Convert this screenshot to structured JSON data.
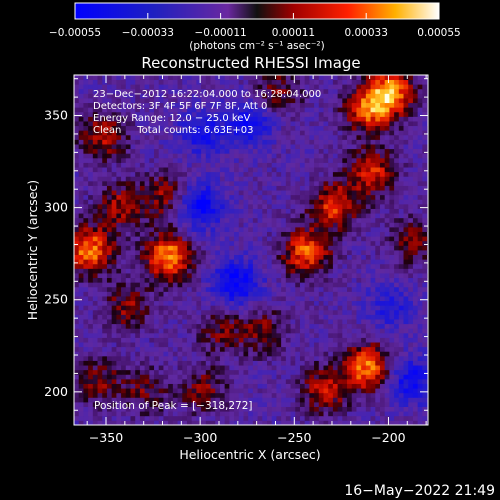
{
  "chart_data": {
    "type": "heatmap",
    "title": "Reconstructed RHESSI Image",
    "xlabel": "Heliocentric X (arcsec)",
    "ylabel": "Heliocentric Y (arcsec)",
    "xlim": [
      -367,
      -179
    ],
    "ylim": [
      182,
      372
    ],
    "x_ticks": [
      {
        "value": -350,
        "label": "−350"
      },
      {
        "value": -300,
        "label": "−300"
      },
      {
        "value": -250,
        "label": "−250"
      },
      {
        "value": -200,
        "label": "−200"
      }
    ],
    "y_ticks": [
      {
        "value": 200,
        "label": "200"
      },
      {
        "value": 250,
        "label": "250"
      },
      {
        "value": 300,
        "label": "300"
      },
      {
        "value": 350,
        "label": "350"
      }
    ],
    "colorbar": {
      "range": [
        -0.00055,
        0.00055
      ],
      "tick_values": [
        -0.00055,
        -0.00033,
        -0.00011,
        0.00011,
        0.00033,
        0.00055
      ],
      "tick_labels": [
        "−0.00055",
        "−0.00033",
        "−0.00011",
        "0.00011",
        "0.00033",
        "0.00055"
      ],
      "unit_text": "(photons cm⁻² s⁻¹ asec⁻²)"
    },
    "annotations": [
      "23−Dec−2012 16:22:04.000 to 16:28:04.000",
      "Detectors: 3F 4F 5F 6F 7F 8F, Att 0",
      "Energy Range: 12.0 − 25.0 keV",
      "Clean     Total counts: 6.63E+03"
    ],
    "peak_label": "Position of Peak = [−318,272]",
    "peak": [
      -318,
      272
    ],
    "blobs": [
      {
        "x": -318,
        "y": 272,
        "amp": 1.0
      },
      {
        "x": -360,
        "y": 276,
        "amp": 0.95
      },
      {
        "x": -343,
        "y": 300,
        "amp": 0.55
      },
      {
        "x": -353,
        "y": 338,
        "amp": 0.6
      },
      {
        "x": -318,
        "y": 305,
        "amp": 0.55
      },
      {
        "x": -340,
        "y": 245,
        "amp": 0.5
      },
      {
        "x": -355,
        "y": 205,
        "amp": 0.45
      },
      {
        "x": -330,
        "y": 200,
        "amp": 0.4
      },
      {
        "x": -268,
        "y": 232,
        "amp": 0.45
      },
      {
        "x": -245,
        "y": 275,
        "amp": 0.85
      },
      {
        "x": -230,
        "y": 300,
        "amp": 0.75
      },
      {
        "x": -200,
        "y": 362,
        "amp": 0.95
      },
      {
        "x": -212,
        "y": 352,
        "amp": 0.8
      },
      {
        "x": -210,
        "y": 318,
        "amp": 0.7
      },
      {
        "x": -188,
        "y": 280,
        "amp": 0.45
      },
      {
        "x": -212,
        "y": 212,
        "amp": 0.95
      },
      {
        "x": -235,
        "y": 200,
        "amp": 0.6
      },
      {
        "x": -260,
        "y": 362,
        "amp": 0.45
      },
      {
        "x": -290,
        "y": 232,
        "amp": 0.4
      },
      {
        "x": -300,
        "y": 200,
        "amp": 0.45
      },
      {
        "x": -282,
        "y": 258,
        "amp": -0.7
      },
      {
        "x": -302,
        "y": 300,
        "amp": -0.75
      },
      {
        "x": -300,
        "y": 340,
        "amp": -0.5
      },
      {
        "x": -190,
        "y": 205,
        "amp": -0.6
      },
      {
        "x": -200,
        "y": 245,
        "amp": -0.4
      },
      {
        "x": -275,
        "y": 345,
        "amp": -0.55
      }
    ]
  },
  "footer": {
    "timestamp": "16−May−2022 21:49"
  }
}
